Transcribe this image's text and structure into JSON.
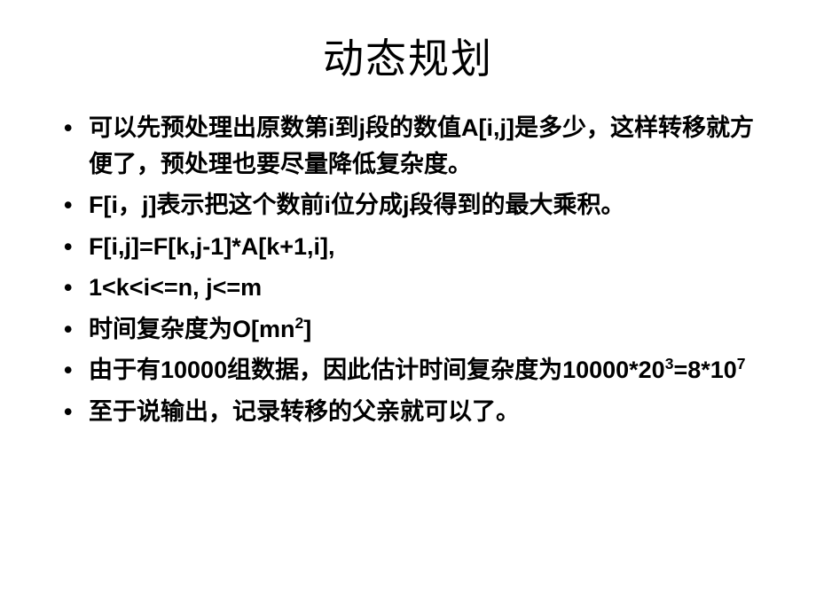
{
  "slide": {
    "title": "动态规划",
    "title_fontsize": 46,
    "body_fontsize": 27,
    "line_height": 1.5,
    "text_color": "#000000",
    "background_color": "#ffffff",
    "font_family": "Microsoft YaHei / SimHei",
    "font_weight_body": 700,
    "bullets": [
      {
        "html": "可以先预处理出原数第i到j段的数值A[i,j]是多少，这样转移就方便了，预处理也要尽量降低复杂度。"
      },
      {
        "html": "F[i，j]表示把这个数前i位分成j段得到的最大乘积。"
      },
      {
        "html": "F[i,j]=F[k,j-1]*A[k+1,i],"
      },
      {
        "html": "1&lt;k&lt;i&lt;=n, j&lt;=m"
      },
      {
        "html": " 时间复杂度为O[mn<sup>2</sup>]"
      },
      {
        "html": "由于有10000组数据，因此估计时间复杂度为10000*20<sup>3</sup>=8*10<sup>7</sup>"
      },
      {
        "html": "至于说输出，记录转移的父亲就可以了。"
      }
    ]
  }
}
